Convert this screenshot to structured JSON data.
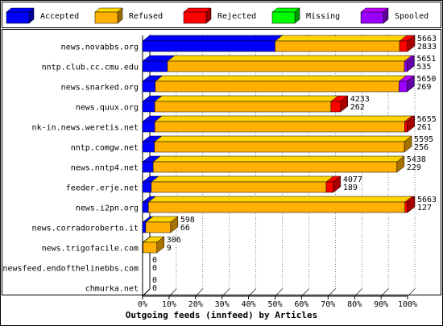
{
  "chart_data": {
    "type": "bar3d_stacked_horizontal",
    "title": "Outgoing feeds (innfeed) by Articles",
    "categories": [
      "news.novabbs.org",
      "nntp.club.cc.cmu.edu",
      "news.snarked.org",
      "news.quux.org",
      "nk-in.news.weretis.net",
      "nntp.comgw.net",
      "news.nntp4.net",
      "feeder.erje.net",
      "news.i2pn.org",
      "news.corradoroberto.it",
      "news.trigofacile.com",
      "newsfeed.endofthelinebbs.com",
      "chmurka.net"
    ],
    "series": [
      {
        "name": "Accepted",
        "color": "#0000ff",
        "values": [
          50,
          9.4,
          4.8,
          4.6,
          4.6,
          4.5,
          4,
          3.3,
          2.2,
          1.2,
          0.2,
          0,
          0
        ]
      },
      {
        "name": "Refused",
        "color": "#ffb000",
        "values": [
          47,
          89.4,
          92,
          66.5,
          94.3,
          94.3,
          92,
          66,
          96.8,
          9.4,
          5.2,
          0,
          0
        ]
      },
      {
        "name": "Rejected",
        "color": "#ff0000",
        "values": [
          3,
          0,
          0,
          3.6,
          1,
          0,
          0,
          2.7,
          1,
          0,
          0,
          0,
          0
        ]
      },
      {
        "name": "Missing",
        "color": "#00ff00",
        "values": [
          0,
          0,
          0,
          0,
          0,
          0,
          0,
          0,
          0,
          0,
          0,
          0,
          0
        ]
      },
      {
        "name": "Spooled",
        "color": "#9900ff",
        "values": [
          0,
          1,
          3,
          0,
          0,
          0,
          0,
          0,
          0,
          0,
          0,
          0,
          0
        ]
      }
    ],
    "offered": [
      5663,
      5651,
      5650,
      4233,
      5655,
      5595,
      5438,
      4077,
      5663,
      598,
      306,
      0,
      0
    ],
    "accepted": [
      2833,
      535,
      269,
      262,
      261,
      256,
      229,
      189,
      127,
      66,
      9,
      0,
      0
    ],
    "xlim": [
      0,
      100
    ],
    "xticks": [
      {
        "value": 0,
        "label": "0%"
      },
      {
        "value": 10,
        "label": "10%"
      },
      {
        "value": 20,
        "label": "20%"
      },
      {
        "value": 30,
        "label": "30%"
      },
      {
        "value": 40,
        "label": "40%"
      },
      {
        "value": 50,
        "label": "50%"
      },
      {
        "value": 60,
        "label": "60%"
      },
      {
        "value": 70,
        "label": "70%"
      },
      {
        "value": 80,
        "label": "80%"
      },
      {
        "value": 90,
        "label": "90%"
      },
      {
        "value": 100,
        "label": "100%"
      }
    ],
    "grid": true
  }
}
